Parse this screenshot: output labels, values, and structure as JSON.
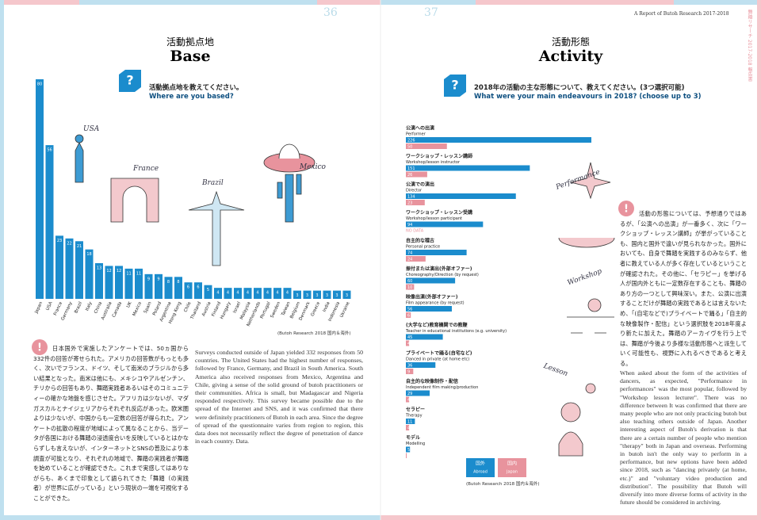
{
  "header": {
    "left_page_number": "36",
    "right_page_number": "37",
    "running_title": "A Report of Butoh Research 2017-2018",
    "vertical_title": "舞踏リサーチ 2017-2018 報告書"
  },
  "base": {
    "title_jp": "活動拠点地",
    "title_en": "Base",
    "question_jp": "活動拠点地を教えてください。",
    "question_en": "Where are you based?",
    "source": "(Butoh Research 2018 国内＆海外)",
    "doodles": [
      "USA",
      "France",
      "Brazil",
      "Mexico"
    ],
    "text_jp": "日本国外で実施したアンケートでは、50ヵ国から332件の回答が寄せられた。アメリカの回答数がもっとも多く、次いでフランス、ドイツ、そして南米のブラジルから多い結果となった。南米は他にも、メキシコやアルゼンチン、チリからの回答もあり、舞踏実践者あるいはそのコミュニティーの確かな地盤を感じさせた。アフリカは少ないが、マダガスカルとナイジェリアからそれぞれ反応があった。欧米圏よりは少ないが、中国からも一定数の回答が得られた。アンケートの拡散の程度が地域によって異なることから、当データが各国における舞踏の浸透度合いを反映しているとはかならずしも言えないが、インターネットとSNSの普及により本調査が可能となり、それぞれの地域で、舞踏の実践者が舞踏を始めていることが確認できた。これまで実感してはありながらも、あくまで印象として語られてきた「舞踏（の実践者）が世界に広がっている」という現状の一端を可視化することができた。",
    "text_en": "Surveys conducted outside of Japan yielded 332 responses from 50 countries. The United States had the highest number of responses, followed by France, Germany, and Brazil in South America. South America also received responses from Mexico, Argentina and Chile, giving a sense of the solid ground of butoh practitioners or their communities. Africa is small, but Madagascar and Nigeria responded respectively. This survey became possible due to the spread of the Internet and SNS, and it was confirmed that there were definitely practitioners of Butoh in each area. Since the degree of spread of the questionnaire varies from region to region, this data does not necessarily reflect the degree of penetration of dance in each country. Data."
  },
  "activity": {
    "title_jp": "活動形態",
    "title_en": "Activity",
    "question_jp": "2018年の活動の主な形態について、教えてください。(3つ選択可能)",
    "question_en": "What were your main endeavours in 2018? (choose up to 3)",
    "source": "(Butoh Research 2018 国内＆海外)",
    "doodles": [
      "Performance",
      "Workshop",
      "Lesson"
    ],
    "legend_en": [
      "Abroad",
      "Japan"
    ],
    "no_data_label": "NO DATA",
    "text_jp": "活動の形態については、予想通りではあるが、「公演への出演」が一番多く、次に「ワークショップ・レッスン講師」が挙がっていることも、国内と国外で違いが見られなかった。国外においても、自身で舞踏を実践するのみならず、他者に教えている人が多く存在しているということが確認された。その他に、「セラピー」を挙げる人が国内外ともに一定数存在することも、舞踏のあり方の一つとして興味深い。また、公演に出演することだけが舞踏の実践であるとは言えないため、「(自宅などで)プライベートで踊る」「自主的な映像製作・配信」という選択肢を2018年度より新たに加えた。舞踏のアーカイヴを行う上では、舞踏が今後より多様な活動形態へと派生していく可能性も、視野に入れるべきであると考える。",
    "text_en": "When asked about the form of the activities of dancers, as expected, \"Performance in performances\" was the most popular, followed by \"Workshop lesson lecturer\". There was no difference between It was confirmed that there are many people who are not only practicing butoh but also teaching others outside of Japan. Another interesting aspect of Butoh's derivation is that there are a certain number of people who mention \"therapy\" both in Japan and overseas. Performing in butoh isn't the only way to perform in a performance, but new options have been added since 2018, such as \"dancing privately (at home, etc.)\" and \"voluntary video production and distribution\". The possibility that Butoh will diversify into more diverse forms of activity in the future should be considered in archiving."
  },
  "chart_data": [
    {
      "type": "bar",
      "color": "#1b8ccd",
      "categories": [
        "Japan",
        "USA",
        "France",
        "Germany",
        "Brazil",
        "Italy",
        "China",
        "Australia",
        "Canada",
        "UK",
        "Mexico",
        "Spain",
        "Poland",
        "Argentina",
        "Hong Kong",
        "Chile",
        "Thailand",
        "Austria",
        "Finland",
        "Hungary",
        "Israel",
        "Malaysia",
        "Netherlands",
        "Portugal",
        "Sweden",
        "Taiwan",
        "Belgium",
        "Denmark",
        "Greece",
        "India",
        "Indonesia",
        "Ukraine"
      ],
      "values": [
        80,
        56,
        23,
        22,
        21,
        18,
        13,
        12,
        12,
        11,
        11,
        9,
        9,
        8,
        8,
        6,
        6,
        5,
        4,
        4,
        4,
        4,
        4,
        4,
        4,
        4,
        3,
        3,
        3,
        3,
        3,
        3
      ]
    },
    {
      "type": "hbar",
      "categories": [
        "公演への出演",
        "ワークショップ・レッスン講師",
        "公演での演出",
        "ワークショップ・レッスン受講",
        "自主的な稽古",
        "振付または演出(外部オファー)",
        "映像出演(外部オファー)",
        "(大学など)教育機関での教鞭",
        "プライベートで踊る(自宅など)",
        "自主的な映像制作・配信",
        "セラピー",
        "モデル"
      ],
      "categories_en": [
        "Performer",
        "Workshop/lesson instructor",
        "Director",
        "Workshop/lesson participant",
        "Personal practice",
        "Choreography/Direction (by request)",
        "Film appearance (by request)",
        "Teacher in educational institutions (e.g. university)",
        "Danced in private (at home etc)",
        "Independent film making/production",
        "Therapy",
        "Modelling"
      ],
      "series": [
        {
          "name": "国外",
          "color": "#1b8ccd",
          "values": [
            226,
            151,
            134,
            94,
            74,
            60,
            56,
            45,
            36,
            29,
            11,
            5
          ]
        },
        {
          "name": "国内",
          "color": "#e8939d",
          "values": [
            50,
            26,
            23,
            null,
            24,
            10,
            6,
            4,
            9,
            4,
            4,
            1
          ]
        }
      ]
    }
  ]
}
